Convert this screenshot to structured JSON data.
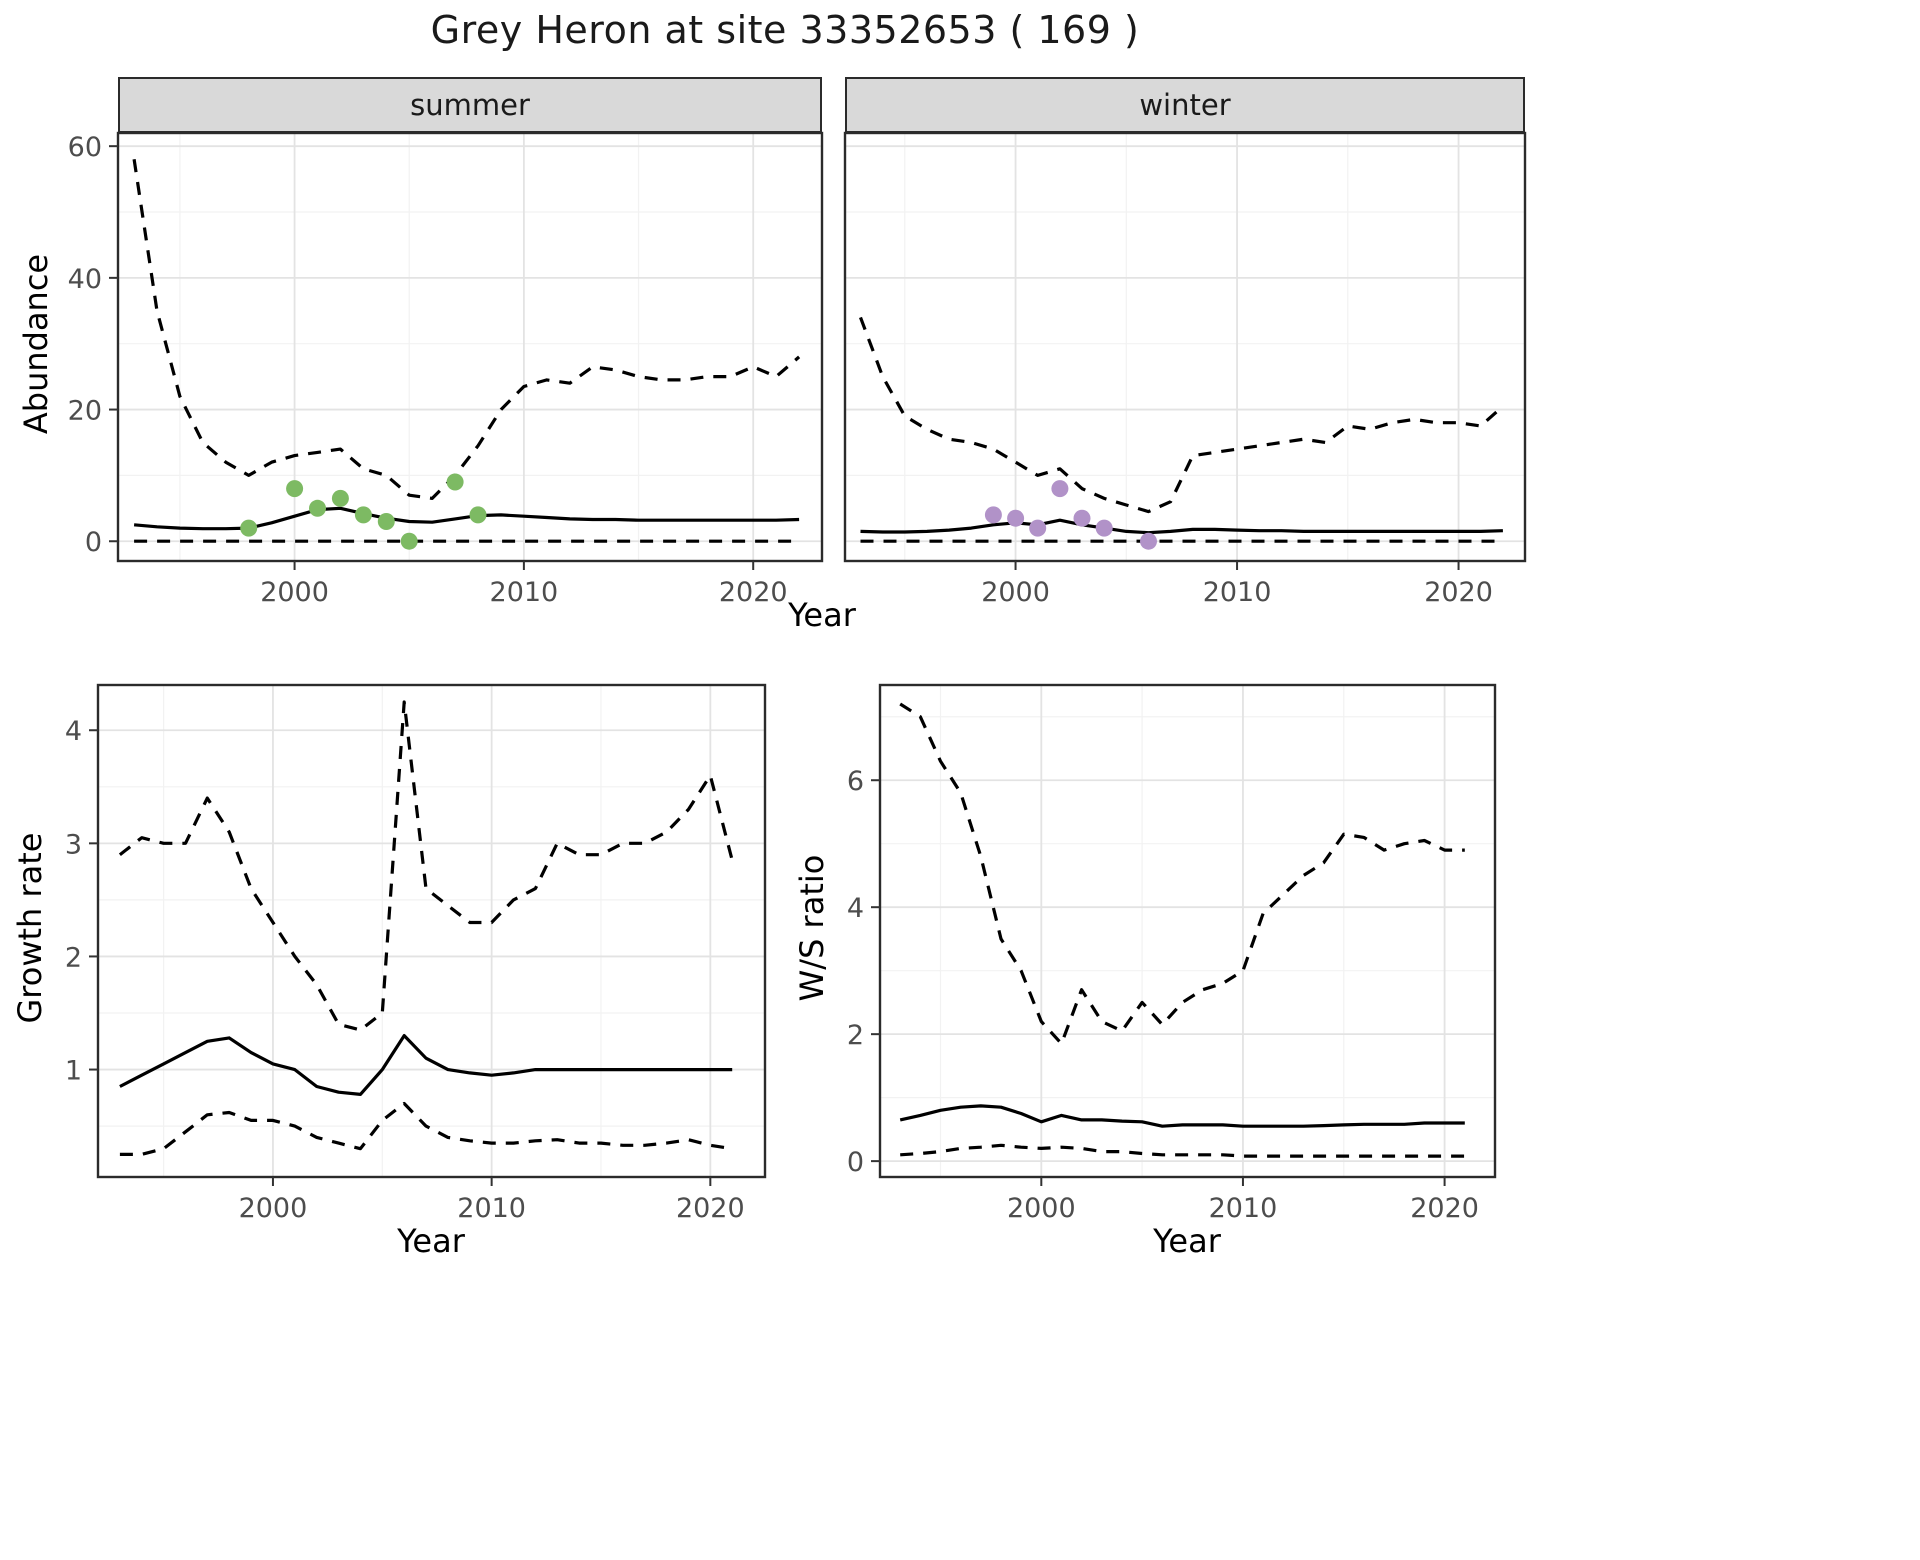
{
  "title": "Grey Heron at site 33352653 ( 169 )",
  "colors": {
    "line": "#000000",
    "grid_major": "#e3e3e3",
    "grid_minor": "#f2f2f2",
    "panel_border": "#2b2b2b",
    "strip_bg": "#d9d9d9",
    "summer_points": "#7dba63",
    "winter_points": "#b192c8"
  },
  "chart_data": [
    {
      "id": "abundance-summer",
      "type": "line",
      "facet": "summer",
      "xlabel": "Year",
      "ylabel": "Abundance",
      "xlim": [
        1992.3,
        2023
      ],
      "ylim": [
        -3,
        62
      ],
      "xticks": [
        2000,
        2010,
        2020
      ],
      "yticks": [
        0,
        20,
        40,
        60
      ],
      "grid": true,
      "legend": "none",
      "x": [
        1993,
        1994,
        1995,
        1996,
        1997,
        1998,
        1999,
        2000,
        2001,
        2002,
        2003,
        2004,
        2005,
        2006,
        2007,
        2008,
        2009,
        2010,
        2011,
        2012,
        2013,
        2014,
        2015,
        2016,
        2017,
        2018,
        2019,
        2020,
        2021,
        2022
      ],
      "series": [
        {
          "name": "upper-ci",
          "style": "dashed",
          "values": [
            58,
            35,
            22,
            15,
            12,
            10,
            12,
            13,
            13.5,
            14,
            11,
            10,
            7,
            6.5,
            10,
            14.5,
            20,
            23.5,
            24.5,
            24,
            26.5,
            26,
            25,
            24.5,
            24.5,
            25,
            25,
            26.5,
            25,
            28
          ]
        },
        {
          "name": "estimate",
          "style": "solid",
          "values": [
            2.5,
            2.2,
            2.0,
            1.9,
            1.9,
            2.0,
            2.8,
            3.8,
            4.8,
            5.0,
            4.2,
            3.5,
            3.0,
            2.9,
            3.4,
            3.9,
            4.0,
            3.8,
            3.6,
            3.4,
            3.3,
            3.3,
            3.2,
            3.2,
            3.2,
            3.2,
            3.2,
            3.2,
            3.2,
            3.3
          ]
        },
        {
          "name": "lower-ci",
          "style": "dashed",
          "values": [
            0,
            0,
            0,
            0,
            0,
            0,
            0,
            0,
            0,
            0,
            0,
            0,
            0,
            0,
            0,
            0,
            0,
            0,
            0,
            0,
            0,
            0,
            0,
            0,
            0,
            0,
            0,
            0,
            0,
            0
          ]
        }
      ],
      "points": {
        "name": "observed-counts-summer",
        "color": "#7dba63",
        "x": [
          1998,
          2000,
          2001,
          2002,
          2003,
          2004,
          2005,
          2007,
          2008
        ],
        "y": [
          2,
          8,
          5,
          6.5,
          4,
          3,
          0,
          9,
          4
        ]
      }
    },
    {
      "id": "abundance-winter",
      "type": "line",
      "facet": "winter",
      "xlabel": "Year",
      "ylabel": "Abundance",
      "xlim": [
        1992.3,
        2023
      ],
      "ylim": [
        -3,
        62
      ],
      "xticks": [
        2000,
        2010,
        2020
      ],
      "yticks": [
        0,
        20,
        40,
        60
      ],
      "grid": true,
      "legend": "none",
      "x": [
        1993,
        1994,
        1995,
        1996,
        1997,
        1998,
        1999,
        2000,
        2001,
        2002,
        2003,
        2004,
        2005,
        2006,
        2007,
        2008,
        2009,
        2010,
        2011,
        2012,
        2013,
        2014,
        2015,
        2016,
        2017,
        2018,
        2019,
        2020,
        2021,
        2022
      ],
      "series": [
        {
          "name": "upper-ci",
          "style": "dashed",
          "values": [
            34,
            25,
            19,
            17,
            15.5,
            15,
            14,
            12,
            10,
            11,
            8,
            6.5,
            5.5,
            4.5,
            6,
            13,
            13.5,
            14,
            14.5,
            15,
            15.5,
            15,
            17.5,
            17,
            18,
            18.5,
            18,
            18,
            17.5,
            20.5
          ]
        },
        {
          "name": "estimate",
          "style": "solid",
          "values": [
            1.5,
            1.4,
            1.4,
            1.5,
            1.7,
            2.0,
            2.5,
            2.8,
            2.5,
            3.2,
            2.5,
            2.0,
            1.5,
            1.3,
            1.5,
            1.8,
            1.8,
            1.7,
            1.6,
            1.6,
            1.5,
            1.5,
            1.5,
            1.5,
            1.5,
            1.5,
            1.5,
            1.5,
            1.5,
            1.6
          ]
        },
        {
          "name": "lower-ci",
          "style": "dashed",
          "values": [
            0,
            0,
            0,
            0,
            0,
            0,
            0,
            0,
            0,
            0,
            0,
            0,
            0,
            0,
            0,
            0,
            0,
            0,
            0,
            0,
            0,
            0,
            0,
            0,
            0,
            0,
            0,
            0,
            0,
            0
          ]
        }
      ],
      "points": {
        "name": "observed-counts-winter",
        "color": "#b192c8",
        "x": [
          1999,
          2000,
          2001,
          2002,
          2003,
          2004,
          2006
        ],
        "y": [
          4,
          3.5,
          2,
          8,
          3.5,
          2,
          0
        ]
      }
    },
    {
      "id": "growth-rate",
      "type": "line",
      "facet": null,
      "xlabel": "Year",
      "ylabel": "Growth rate",
      "xlim": [
        1992,
        2022.5
      ],
      "ylim": [
        0.05,
        4.4
      ],
      "xticks": [
        2000,
        2010,
        2020
      ],
      "yticks": [
        1,
        2,
        3,
        4
      ],
      "grid": true,
      "legend": "none",
      "x": [
        1993,
        1994,
        1995,
        1996,
        1997,
        1998,
        1999,
        2000,
        2001,
        2002,
        2003,
        2004,
        2005,
        2006,
        2007,
        2008,
        2009,
        2010,
        2011,
        2012,
        2013,
        2014,
        2015,
        2016,
        2017,
        2018,
        2019,
        2020,
        2021
      ],
      "series": [
        {
          "name": "upper-ci",
          "style": "dashed",
          "values": [
            2.9,
            3.05,
            3.0,
            3.0,
            3.4,
            3.1,
            2.6,
            2.3,
            2.0,
            1.75,
            1.4,
            1.35,
            1.5,
            4.25,
            2.6,
            2.45,
            2.3,
            2.3,
            2.5,
            2.6,
            3.0,
            2.9,
            2.9,
            3.0,
            3.0,
            3.1,
            3.3,
            3.6,
            2.85
          ]
        },
        {
          "name": "estimate",
          "style": "solid",
          "values": [
            0.85,
            0.95,
            1.05,
            1.15,
            1.25,
            1.28,
            1.15,
            1.05,
            1.0,
            0.85,
            0.8,
            0.78,
            1.0,
            1.3,
            1.1,
            1.0,
            0.97,
            0.95,
            0.97,
            1.0,
            1.0,
            1.0,
            1.0,
            1.0,
            1.0,
            1.0,
            1.0,
            1.0,
            1.0
          ]
        },
        {
          "name": "lower-ci",
          "style": "dashed",
          "values": [
            0.25,
            0.25,
            0.3,
            0.45,
            0.6,
            0.62,
            0.55,
            0.55,
            0.5,
            0.4,
            0.35,
            0.3,
            0.55,
            0.7,
            0.5,
            0.4,
            0.37,
            0.35,
            0.35,
            0.37,
            0.38,
            0.35,
            0.35,
            0.33,
            0.33,
            0.35,
            0.38,
            0.33,
            0.3
          ]
        }
      ],
      "points": null
    },
    {
      "id": "ws-ratio",
      "type": "line",
      "facet": null,
      "xlabel": "Year",
      "ylabel": "W/S ratio",
      "xlim": [
        1992,
        2022.5
      ],
      "ylim": [
        -0.25,
        7.5
      ],
      "xticks": [
        2000,
        2010,
        2020
      ],
      "yticks": [
        0,
        2,
        4,
        6
      ],
      "grid": true,
      "legend": "none",
      "x": [
        1993,
        1994,
        1995,
        1996,
        1997,
        1998,
        1999,
        2000,
        2001,
        2002,
        2003,
        2004,
        2005,
        2006,
        2007,
        2008,
        2009,
        2010,
        2011,
        2012,
        2013,
        2014,
        2015,
        2016,
        2017,
        2018,
        2019,
        2020,
        2021
      ],
      "series": [
        {
          "name": "upper-ci",
          "style": "dashed",
          "values": [
            7.2,
            7.0,
            6.3,
            5.8,
            4.8,
            3.5,
            3.0,
            2.2,
            1.85,
            2.7,
            2.2,
            2.05,
            2.5,
            2.15,
            2.5,
            2.7,
            2.8,
            3.0,
            3.9,
            4.2,
            4.5,
            4.7,
            5.15,
            5.1,
            4.9,
            5.0,
            5.05,
            4.9,
            4.9
          ]
        },
        {
          "name": "estimate",
          "style": "solid",
          "values": [
            0.65,
            0.72,
            0.8,
            0.85,
            0.87,
            0.85,
            0.75,
            0.62,
            0.72,
            0.65,
            0.65,
            0.63,
            0.62,
            0.55,
            0.57,
            0.57,
            0.57,
            0.55,
            0.55,
            0.55,
            0.55,
            0.56,
            0.57,
            0.58,
            0.58,
            0.58,
            0.6,
            0.6,
            0.6
          ]
        },
        {
          "name": "lower-ci",
          "style": "dashed",
          "values": [
            0.1,
            0.12,
            0.15,
            0.2,
            0.22,
            0.25,
            0.22,
            0.2,
            0.22,
            0.2,
            0.15,
            0.15,
            0.12,
            0.1,
            0.1,
            0.1,
            0.1,
            0.08,
            0.08,
            0.08,
            0.08,
            0.08,
            0.08,
            0.08,
            0.08,
            0.08,
            0.08,
            0.08,
            0.08
          ]
        }
      ],
      "points": null
    }
  ]
}
